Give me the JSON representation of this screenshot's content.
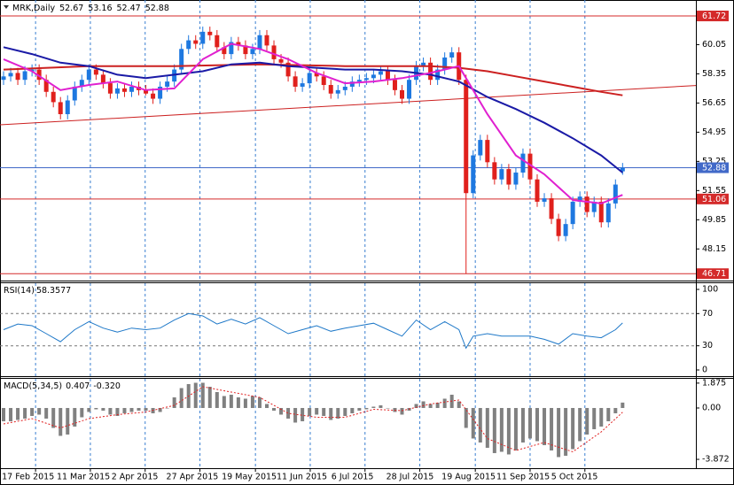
{
  "chart_data": {
    "type": "candlestick",
    "title": "MRK,Daily",
    "up_color": "#1e78e0",
    "down_color": "#e0201c",
    "grid": true,
    "xlim": [
      -0.5,
      97.3
    ],
    "xticks": [
      {
        "value": 4.5,
        "label": "17 Feb 2015"
      },
      {
        "value": 12.2,
        "label": "11 Mar 2015"
      },
      {
        "value": 19.9,
        "label": "2 Apr 2015"
      },
      {
        "value": 27.6,
        "label": "27 Apr 2015"
      },
      {
        "value": 35.4,
        "label": "19 May 2015"
      },
      {
        "value": 43.1,
        "label": "11 Jun 2015"
      },
      {
        "value": 50.8,
        "label": "6 Jul 2015"
      },
      {
        "value": 58.5,
        "label": "28 Jul 2015"
      },
      {
        "value": 66.3,
        "label": "19 Aug 2015"
      },
      {
        "value": 74,
        "label": "11 Sep 2015"
      },
      {
        "value": 81.7,
        "label": "5 Oct 2015"
      }
    ],
    "ylim": [
      46.36,
      62.65
    ],
    "yticks": [
      60.05,
      58.35,
      56.65,
      54.95,
      53.25,
      51.55,
      49.85,
      48.15
    ],
    "open": [
      58,
      58.2,
      58.4,
      58,
      58.5,
      58.6,
      58,
      57.3,
      56.7,
      56,
      56.8,
      57.6,
      58,
      58.6,
      58.3,
      57.8,
      57.2,
      57.5,
      57.3,
      57.6,
      57.4,
      57.2,
      56.9,
      57.6,
      57.9,
      58.6,
      59.8,
      60.3,
      60.1,
      60.8,
      60.6,
      59.9,
      59.5,
      60.2,
      60,
      59.5,
      59.8,
      60.6,
      60,
      59.2,
      59,
      58.2,
      57.6,
      57.8,
      58.4,
      58.2,
      57.7,
      57.2,
      57.4,
      57.6,
      57.9,
      58,
      58.1,
      58.3,
      58.5,
      58,
      57.4,
      56.9,
      58,
      58.8,
      59,
      58,
      58.6,
      59.3,
      59.6,
      58,
      51.4,
      53.6,
      54.5,
      53.2,
      52.2,
      52.8,
      51.9,
      52.6,
      53.7,
      52.2,
      50.9,
      51.1,
      49.9,
      48.9,
      49.6,
      50.9,
      51.2,
      50.3,
      50.9,
      49.7,
      50.8,
      52.67
    ],
    "high": [
      58.5,
      58.7,
      58.7,
      58.8,
      58.9,
      58.9,
      58.3,
      57.6,
      57,
      57.1,
      57.9,
      58.3,
      58.9,
      58.9,
      58.6,
      58.1,
      57.8,
      57.8,
      57.9,
      57.9,
      57.7,
      57.5,
      57.9,
      58.2,
      58.9,
      60.1,
      60.6,
      60.6,
      61.1,
      61.1,
      60.9,
      60.2,
      60.5,
      60.5,
      60.3,
      60.1,
      60.9,
      60.9,
      60.3,
      59.5,
      59.3,
      58.5,
      58.1,
      58.7,
      58.7,
      58.5,
      58,
      57.7,
      57.9,
      58.2,
      58.3,
      58.4,
      58.6,
      58.8,
      58.8,
      58.3,
      57.7,
      58.3,
      59.1,
      59.3,
      59.3,
      58.9,
      59.6,
      59.9,
      59.9,
      58.3,
      53.9,
      54.8,
      54.8,
      53.5,
      53.1,
      53.1,
      52.9,
      54,
      54,
      52.5,
      51.4,
      51.4,
      50.2,
      49.9,
      51.2,
      51.5,
      51.5,
      51.2,
      51.2,
      51.1,
      52.2,
      53.16
    ],
    "low": [
      57.7,
      57.9,
      57.7,
      57.7,
      58.2,
      57.7,
      57,
      56.4,
      55.7,
      55.7,
      56.5,
      57.3,
      57.7,
      58,
      57.5,
      56.9,
      56.9,
      57,
      57,
      57.1,
      57.1,
      56.6,
      56.6,
      57.3,
      57.6,
      58.3,
      59.5,
      59.8,
      59.8,
      60.3,
      59.6,
      59.2,
      59.2,
      59.7,
      59.2,
      59.2,
      59.5,
      59.7,
      58.9,
      58.7,
      57.9,
      57.3,
      57.3,
      57.5,
      57.9,
      57.4,
      56.9,
      56.9,
      57.1,
      57.3,
      57.6,
      57.7,
      57.8,
      58,
      57.7,
      57.1,
      56.6,
      56.6,
      57.7,
      58.5,
      57.7,
      57.7,
      58.3,
      59,
      57.7,
      46.71,
      51.1,
      53.3,
      52.9,
      51.9,
      51.9,
      51.6,
      51.6,
      52.3,
      51.9,
      50.6,
      50.6,
      49.6,
      48.6,
      48.6,
      49.3,
      50.6,
      50,
      50,
      49.4,
      49.4,
      50.5,
      52.47
    ],
    "close": [
      58.2,
      58.4,
      58,
      58.5,
      58.6,
      58,
      57.3,
      56.7,
      56,
      56.8,
      57.6,
      58,
      58.6,
      58.3,
      57.8,
      57.2,
      57.5,
      57.3,
      57.6,
      57.4,
      57.2,
      56.9,
      57.6,
      57.9,
      58.6,
      59.8,
      60.3,
      60.1,
      60.8,
      60.6,
      59.9,
      59.5,
      60.2,
      60,
      59.5,
      59.8,
      60.6,
      60,
      59.2,
      59,
      58.2,
      57.6,
      57.8,
      58.4,
      58.2,
      57.7,
      57.2,
      57.4,
      57.6,
      57.9,
      58,
      58.1,
      58.3,
      58.5,
      58,
      57.4,
      56.9,
      58,
      58.8,
      59,
      58,
      58.6,
      59.3,
      59.6,
      58,
      51.4,
      53.6,
      54.5,
      53.2,
      52.2,
      52.8,
      51.9,
      52.6,
      53.7,
      52.2,
      50.9,
      51.1,
      49.9,
      48.9,
      49.6,
      50.9,
      51.2,
      50.3,
      50.9,
      49.7,
      50.8,
      51.9,
      52.88
    ],
    "levels": [
      {
        "value": 61.72,
        "color": "#d42a2a"
      },
      {
        "value": 52.88,
        "color": "#4169c8"
      },
      {
        "value": 51.06,
        "color": "#d42a2a"
      },
      {
        "value": 46.71,
        "color": "#d42a2a"
      }
    ],
    "trendline": {
      "x": [
        -0.5,
        97.3
      ],
      "values": [
        55.38,
        57.67
      ],
      "color": "#cc2020"
    },
    "series": [
      {
        "color": "#cc2020",
        "x": [
          0,
          12,
          24,
          36,
          48,
          60,
          64,
          68,
          72,
          76,
          80,
          84,
          87
        ],
        "values": [
          58.6,
          58.8,
          58.8,
          58.9,
          58.8,
          58.8,
          58.7,
          58.5,
          58.2,
          57.9,
          57.6,
          57.3,
          57.1
        ]
      },
      {
        "color": "#1a1aa6",
        "x": [
          0,
          4,
          8,
          12,
          16,
          20,
          24,
          28,
          32,
          36,
          40,
          44,
          48,
          52,
          56,
          60,
          64,
          68,
          72,
          76,
          80,
          84,
          87
        ],
        "values": [
          59.9,
          59.5,
          59,
          58.8,
          58.3,
          58.1,
          58.3,
          58.5,
          58.9,
          59,
          58.8,
          58.7,
          58.6,
          58.6,
          58.5,
          58.3,
          57.9,
          57,
          56.3,
          55.5,
          54.6,
          53.6,
          52.6
        ]
      },
      {
        "color": "#e020d0",
        "x": [
          0,
          4,
          8,
          12,
          16,
          20,
          24,
          28,
          32,
          36,
          40,
          44,
          48,
          52,
          56,
          60,
          64,
          68,
          72,
          76,
          80,
          84,
          87
        ],
        "values": [
          59.2,
          58.5,
          57.4,
          57.7,
          57.9,
          57.4,
          57.5,
          59.2,
          60.1,
          59.8,
          59.2,
          58.4,
          57.8,
          57.9,
          58.1,
          58.4,
          58.8,
          56,
          53.6,
          52.5,
          51,
          50.8,
          51.3
        ]
      }
    ],
    "rsi": {
      "title": "RSI(14)",
      "color": "#1e78c8",
      "ylim": [
        -7.7,
        107.7
      ],
      "yticks": [
        100,
        70,
        30,
        0
      ],
      "levels": [
        70,
        30
      ],
      "x": [
        0,
        2,
        4,
        6,
        8,
        10,
        12,
        14,
        16,
        18,
        20,
        22,
        24,
        26,
        28,
        30,
        32,
        34,
        36,
        38,
        40,
        42,
        44,
        46,
        48,
        50,
        52,
        54,
        56,
        58,
        60,
        62,
        64,
        65,
        66,
        68,
        70,
        72,
        74,
        76,
        78,
        80,
        82,
        84,
        86,
        87
      ],
      "values": [
        50,
        57,
        55,
        45,
        35,
        50,
        60,
        52,
        47,
        52,
        50,
        52,
        62,
        70,
        67,
        57,
        63,
        57,
        65,
        55,
        45,
        50,
        55,
        48,
        52,
        55,
        58,
        50,
        42,
        62,
        50,
        60,
        50,
        27,
        42,
        45,
        42,
        42,
        42,
        38,
        32,
        45,
        42,
        40,
        50,
        58.3577
      ]
    },
    "macd": {
      "title": "MACD(5,34,5)",
      "color": "#808080",
      "ylim": [
        -4.47,
        2.2
      ],
      "yticks": [
        1.875,
        {
          "value": 0,
          "label": "0.00"
        },
        -3.872
      ],
      "values": [
        -1,
        -1,
        -0.9,
        -0.8,
        -0.6,
        -0.5,
        -0.8,
        -1.5,
        -2.1,
        -2,
        -1.4,
        -0.7,
        -0.3,
        -0.1,
        -0.2,
        -0.5,
        -0.6,
        -0.4,
        -0.3,
        -0.2,
        -0.2,
        -0.4,
        -0.3,
        0,
        0.8,
        1.5,
        1.8,
        1.9,
        1.9,
        1.6,
        1.2,
        0.9,
        1,
        0.8,
        0.7,
        0.9,
        0.8,
        0.3,
        -0.2,
        -0.5,
        -0.8,
        -1.1,
        -1,
        -0.6,
        -0.5,
        -0.6,
        -0.9,
        -0.8,
        -0.6,
        -0.4,
        -0.2,
        -0.1,
        0.1,
        0.2,
        0,
        -0.3,
        -0.5,
        -0.2,
        0.3,
        0.5,
        0.3,
        0.4,
        0.7,
        1,
        0.5,
        -1.5,
        -2.3,
        -2.6,
        -3,
        -3.4,
        -3.3,
        -3.5,
        -3.2,
        -2.6,
        -2.3,
        -2.5,
        -2.8,
        -3.2,
        -3.7,
        -3.6,
        -3.1,
        -2.5,
        -2,
        -1.6,
        -1.4,
        -1,
        -0.4,
        0.407
      ],
      "signal": {
        "color": "#e02020",
        "x": [
          0,
          4,
          8,
          12,
          16,
          20,
          24,
          28,
          32,
          36,
          40,
          44,
          48,
          52,
          56,
          60,
          64,
          68,
          72,
          76,
          80,
          84,
          87
        ],
        "values": [
          -1.2,
          -0.8,
          -1.5,
          -0.8,
          -0.5,
          -0.3,
          0.2,
          1.6,
          1.2,
          0.8,
          -0.4,
          -0.7,
          -0.7,
          -0.1,
          -0.2,
          0.3,
          0.6,
          -2.3,
          -3.2,
          -2.6,
          -3.3,
          -1.8,
          -0.32
        ],
        "value_labels": [
          null,
          null,
          null,
          null,
          null,
          null,
          null,
          null,
          null,
          null,
          null,
          null,
          null,
          null,
          null,
          null,
          null,
          null,
          null,
          null,
          null,
          null,
          "-0.320"
        ]
      }
    }
  }
}
